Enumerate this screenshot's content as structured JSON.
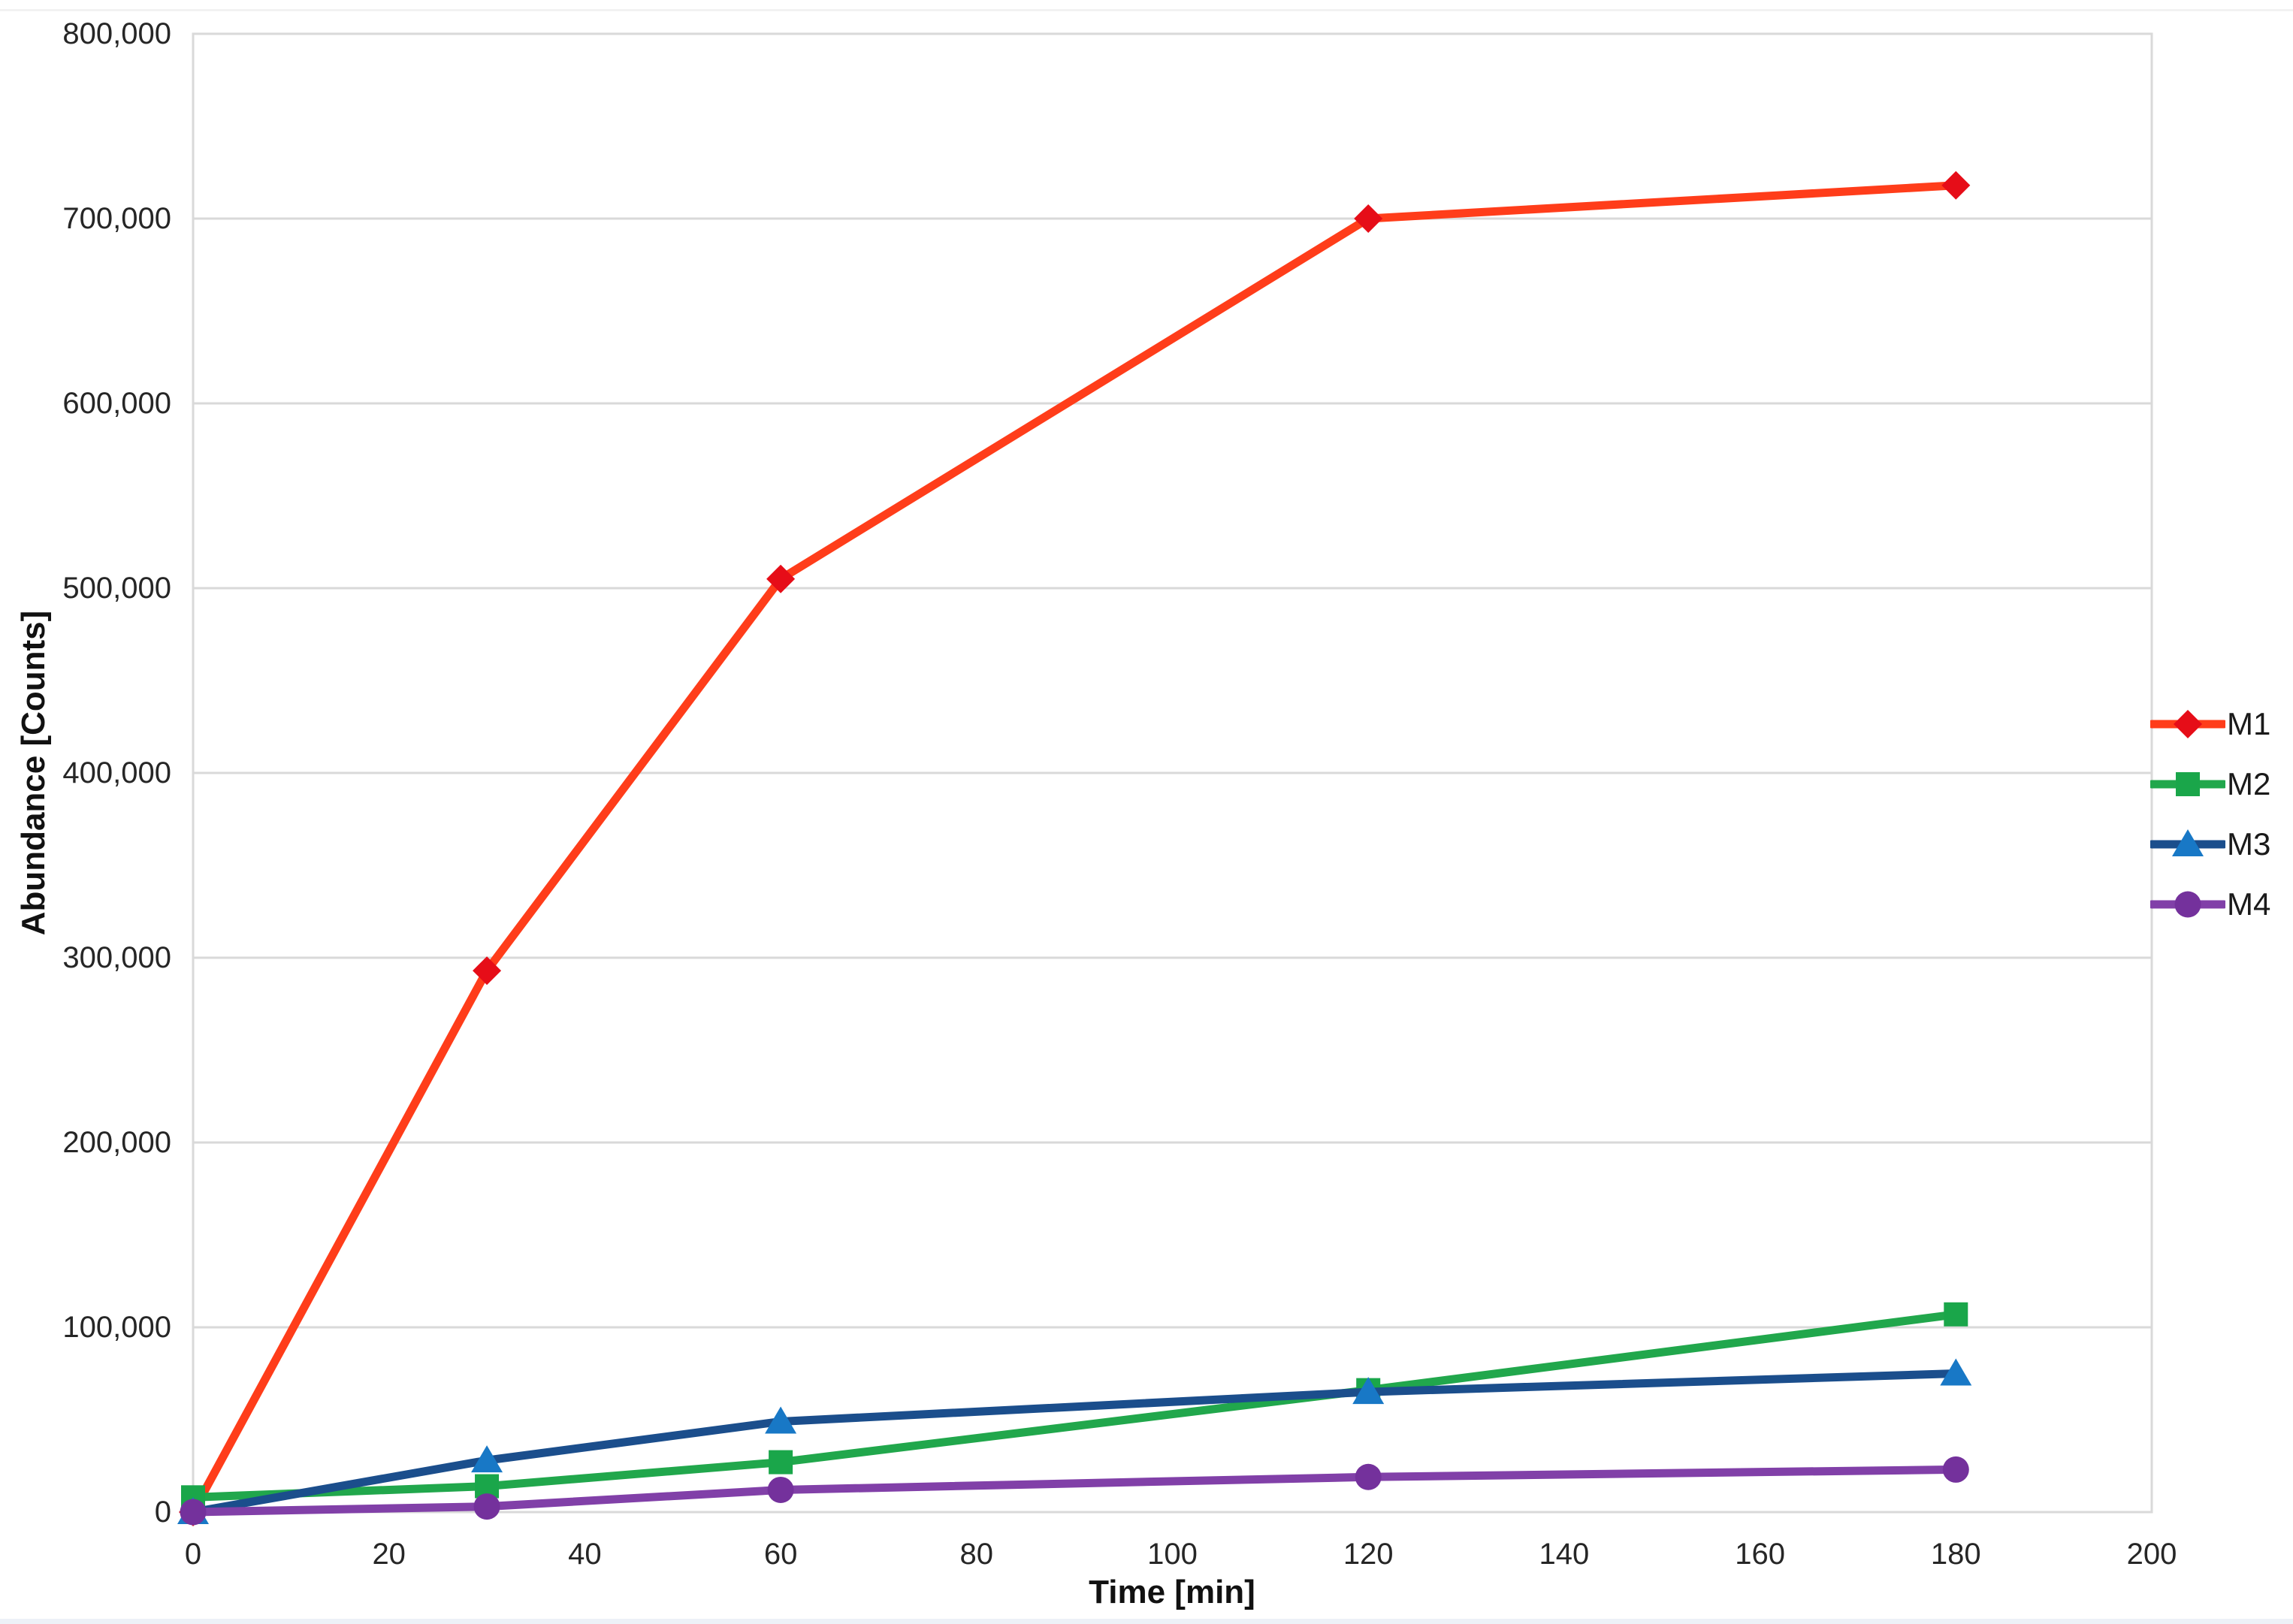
{
  "chart_data": {
    "type": "line",
    "title": "",
    "xlabel": "Time [min]",
    "ylabel": "Abundance [Counts]",
    "x": [
      0,
      30,
      60,
      120,
      180
    ],
    "series": [
      {
        "name": "M1",
        "marker": "diamond",
        "line_color": "#ff3d1a",
        "marker_color": "#e60d18",
        "values": [
          0,
          293000,
          505000,
          700000,
          718000
        ]
      },
      {
        "name": "M2",
        "marker": "square",
        "line_color": "#21a74c",
        "marker_color": "#1aa64a",
        "values": [
          8000,
          14000,
          27000,
          66000,
          107000
        ]
      },
      {
        "name": "M3",
        "marker": "triangle",
        "line_color": "#1b4e8c",
        "marker_color": "#1878c6",
        "values": [
          0,
          28000,
          49000,
          65000,
          75000
        ]
      },
      {
        "name": "M4",
        "marker": "circle",
        "line_color": "#8140a8",
        "marker_color": "#74319c",
        "values": [
          0,
          3000,
          12000,
          19000,
          23000
        ]
      }
    ],
    "xlim": [
      0,
      200
    ],
    "ylim": [
      0,
      800000
    ],
    "x_ticks": [
      0,
      20,
      40,
      60,
      80,
      100,
      120,
      140,
      160,
      180,
      200
    ],
    "y_ticks": [
      0,
      100000,
      200000,
      300000,
      400000,
      500000,
      600000,
      700000,
      800000
    ],
    "y_tick_labels": [
      "0",
      "100,000",
      "200,000",
      "300,000",
      "400,000",
      "500,000",
      "600,000",
      "700,000",
      "800,000"
    ],
    "grid": "horizontal",
    "legend_position": "right",
    "legend": [
      "M1",
      "M2",
      "M3",
      "M4"
    ]
  },
  "colors": {
    "background": "#ffffff",
    "gridline": "#d9d9d9",
    "plot_border": "#d9d9d9",
    "tick_text": "#262626",
    "title_text": "#111111"
  }
}
